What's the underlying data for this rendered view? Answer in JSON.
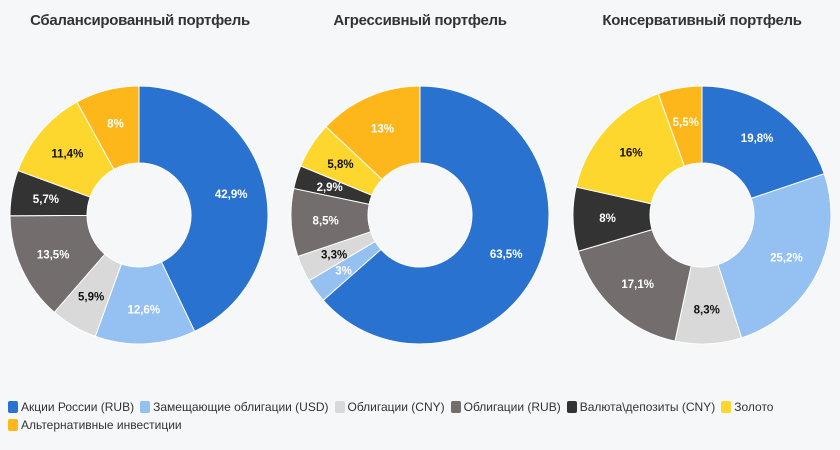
{
  "legend": [
    {
      "label": "Акции России (RUB)",
      "color": "#2a72d0"
    },
    {
      "label": "Замещающие облигации (USD)",
      "color": "#94c0f2"
    },
    {
      "label": "Облигации (CNY)",
      "color": "#d9d9d9"
    },
    {
      "label": "Облигации (RUB)",
      "color": "#736d6d"
    },
    {
      "label": "Валюта\\депозиты (CNY)",
      "color": "#333333"
    },
    {
      "label": "Золото",
      "color": "#fdd72d"
    },
    {
      "label": "Альтернативные инвестиции",
      "color": "#fdb71a"
    }
  ],
  "titles": [
    "Сбалансированный портфель",
    "Агрессивный портфель",
    "Консервативный портфель"
  ],
  "chart_data": [
    {
      "type": "pie",
      "title": "Сбалансированный портфель",
      "donut": true,
      "categories": [
        "Акции России (RUB)",
        "Замещающие облигации (USD)",
        "Облигации (CNY)",
        "Облигации (RUB)",
        "Валюта\\депозиты (CNY)",
        "Золото",
        "Альтернативные инвестиции"
      ],
      "values": [
        42.9,
        12.6,
        5.9,
        13.5,
        5.7,
        11.4,
        8
      ],
      "labels": [
        "42,9%",
        "12,6%",
        "5,9%",
        "13,5%",
        "5,7%",
        "11,4%",
        "8%"
      ],
      "legend_position": "bottom"
    },
    {
      "type": "pie",
      "title": "Агрессивный портфель",
      "donut": true,
      "categories": [
        "Акции России (RUB)",
        "Замещающие облигации (USD)",
        "Облигации (CNY)",
        "Облигации (RUB)",
        "Валюта\\депозиты (CNY)",
        "Золото",
        "Альтернативные инвестиции"
      ],
      "values": [
        63.5,
        3,
        3.3,
        8.5,
        2.9,
        5.8,
        13
      ],
      "labels": [
        "63,5%",
        "3%",
        "3,3%",
        "8,5%",
        "2,9%",
        "5,8%",
        "13%"
      ],
      "legend_position": "bottom"
    },
    {
      "type": "pie",
      "title": "Консервативный портфель",
      "donut": true,
      "categories": [
        "Акции России (RUB)",
        "Замещающие облигации (USD)",
        "Облигации (CNY)",
        "Облигации (RUB)",
        "Валюта\\депозиты (CNY)",
        "Золото",
        "Альтернативные инвестиции"
      ],
      "values": [
        19.8,
        25.2,
        8.3,
        17.1,
        8,
        16,
        5.5
      ],
      "labels": [
        "19,8%",
        "25,2%",
        "8,3%",
        "17,1%",
        "8%",
        "16%",
        "5,5%"
      ],
      "legend_position": "bottom"
    }
  ],
  "label_colors": [
    "#ffffff",
    "#ffffff",
    "#111111",
    "#ffffff",
    "#ffffff",
    "#111111",
    "#ffffff"
  ]
}
